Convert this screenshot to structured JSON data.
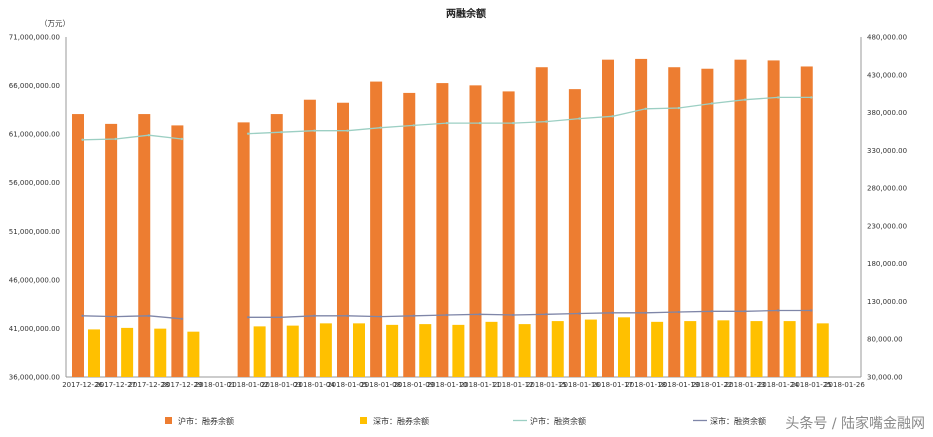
{
  "chart_data": {
    "type": "bar",
    "title": "两融余额",
    "y_unit": "（万元）",
    "categories": [
      "2017-12-26",
      "2017-12-27",
      "2017-12-28",
      "2017-12-29",
      "2018-01-01",
      "2018-01-02",
      "2018-01-03",
      "2018-01-04",
      "2018-01-05",
      "2018-01-08",
      "2018-01-09",
      "2018-01-10",
      "2018-01-11",
      "2018-01-12",
      "2018-01-15",
      "2018-01-16",
      "2018-01-17",
      "2018-01-18",
      "2018-01-19",
      "2018-01-22",
      "2018-01-23",
      "2018-01-24",
      "2018-01-25",
      "2018-01-26"
    ],
    "y_left": {
      "min": 36000000,
      "max": 71000000,
      "ticks": [
        "36,000,000.00",
        "41,000,000.00",
        "46,000,000.00",
        "51,000,000.00",
        "56,000,000.00",
        "61,000,000.00",
        "66,000,000.00",
        "71,000,000.00"
      ]
    },
    "y_right": {
      "min": 30000,
      "max": 480000,
      "ticks": [
        "30,000.00",
        "80,000.00",
        "130,000.00",
        "180,000.00",
        "230,000.00",
        "280,000.00",
        "330,000.00",
        "380,000.00",
        "430,000.00",
        "480,000.00"
      ]
    },
    "series": [
      {
        "name": "沪市：融券余额",
        "kind": "bar",
        "axis": "right",
        "color": "#ED7D31",
        "values": [
          378000,
          365000,
          378000,
          363000,
          null,
          367000,
          378000,
          397000,
          393000,
          421000,
          406000,
          419000,
          416000,
          408000,
          440000,
          411000,
          450000,
          451000,
          440000,
          438000,
          450000,
          449000,
          441000,
          null
        ]
      },
      {
        "name": "深市：融券余额",
        "kind": "bar",
        "axis": "right",
        "color": "#FFC000",
        "values": [
          93000,
          95000,
          94000,
          90000,
          null,
          97000,
          98000,
          101000,
          101000,
          99000,
          100000,
          99000,
          103000,
          100000,
          104000,
          106000,
          109000,
          103000,
          104000,
          105000,
          104000,
          104000,
          101000,
          null
        ]
      },
      {
        "name": "沪市：融资余额",
        "kind": "line",
        "axis": "right",
        "color": "#9CCFC3",
        "values": [
          344000,
          345000,
          350000,
          345000,
          null,
          352000,
          354000,
          356000,
          356000,
          360000,
          363000,
          366000,
          366000,
          366000,
          368000,
          372000,
          375000,
          385000,
          386000,
          392000,
          397000,
          400000,
          400000,
          null
        ]
      },
      {
        "name": "深市：融资余额",
        "kind": "line",
        "axis": "right",
        "color": "#7F86A8",
        "values": [
          111000,
          110000,
          111000,
          107000,
          null,
          109000,
          109000,
          111000,
          111000,
          110000,
          111000,
          112000,
          113000,
          112000,
          113000,
          114000,
          115000,
          115000,
          116000,
          117000,
          117000,
          118000,
          118000,
          null
        ]
      }
    ],
    "legend_position": "bottom",
    "grid": false
  },
  "watermark": "头条号 / 陆家嘴金融网"
}
